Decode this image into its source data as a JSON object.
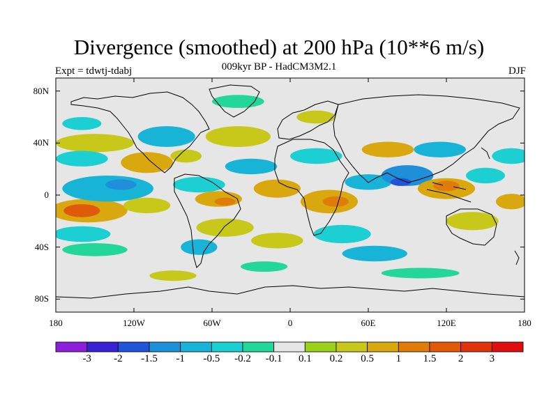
{
  "title": "Divergence (smoothed) at 200 hPa (10**6 m/s)",
  "subtitle": "009kyr BP - HadCM3M2.1",
  "experiment": "Expt = tdwtj-tdabj",
  "season": "DJF",
  "map": {
    "projection": "cylindrical-equidistant",
    "lon_range": [
      -180,
      180
    ],
    "lat_range": [
      -90,
      90
    ],
    "x_ticks": [
      "180",
      "120W",
      "60W",
      "0",
      "60E",
      "120E",
      "180"
    ],
    "x_tick_lons": [
      -180,
      -120,
      -60,
      0,
      60,
      120,
      180
    ],
    "y_ticks": [
      "80N",
      "40N",
      "0",
      "40S",
      "80S"
    ],
    "y_tick_lats": [
      80,
      40,
      0,
      -40,
      -80
    ],
    "background_color": "#e6e6e6"
  },
  "colorbar": {
    "labels": [
      "-3",
      "-2",
      "-1.5",
      "-1",
      "-0.5",
      "-0.2",
      "-0.1",
      "0.1",
      "0.2",
      "0.5",
      "1",
      "1.5",
      "2",
      "3"
    ],
    "colors": [
      "#8c1fd9",
      "#3a1fd6",
      "#1f55d6",
      "#1f8fd9",
      "#18b4d8",
      "#1bcfd2",
      "#23d69a",
      "#e6e6e6",
      "#9bd11a",
      "#c8c81a",
      "#d9a80e",
      "#e07c0a",
      "#e05a0a",
      "#e0330a",
      "#e00f0f"
    ]
  },
  "field_patches": [
    {
      "lon": -155,
      "lat": -12,
      "rx": 30,
      "ry": 9,
      "color": "#d9a80e"
    },
    {
      "lon": -160,
      "lat": -12,
      "rx": 14,
      "ry": 5,
      "color": "#e05a0a"
    },
    {
      "lon": -140,
      "lat": 5,
      "rx": 35,
      "ry": 10,
      "color": "#18b4d8"
    },
    {
      "lon": -130,
      "lat": 8,
      "rx": 12,
      "ry": 4,
      "color": "#1f8fd9"
    },
    {
      "lon": -150,
      "lat": 40,
      "rx": 30,
      "ry": 7,
      "color": "#c8c81a"
    },
    {
      "lon": -160,
      "lat": 28,
      "rx": 20,
      "ry": 6,
      "color": "#1bcfd2"
    },
    {
      "lon": -160,
      "lat": -30,
      "rx": 22,
      "ry": 6,
      "color": "#1bcfd2"
    },
    {
      "lon": -150,
      "lat": -42,
      "rx": 25,
      "ry": 5,
      "color": "#23d69a"
    },
    {
      "lon": -110,
      "lat": 25,
      "rx": 20,
      "ry": 8,
      "color": "#d9a80e"
    },
    {
      "lon": -110,
      "lat": -8,
      "rx": 18,
      "ry": 6,
      "color": "#c8c81a"
    },
    {
      "lon": -95,
      "lat": 45,
      "rx": 22,
      "ry": 8,
      "color": "#18b4d8"
    },
    {
      "lon": -80,
      "lat": 30,
      "rx": 12,
      "ry": 5,
      "color": "#c8c81a"
    },
    {
      "lon": -70,
      "lat": 8,
      "rx": 20,
      "ry": 6,
      "color": "#1bcfd2"
    },
    {
      "lon": -55,
      "lat": -3,
      "rx": 18,
      "ry": 6,
      "color": "#d9a80e"
    },
    {
      "lon": -50,
      "lat": -5,
      "rx": 8,
      "ry": 3,
      "color": "#e07c0a"
    },
    {
      "lon": -50,
      "lat": -25,
      "rx": 22,
      "ry": 7,
      "color": "#c8c81a"
    },
    {
      "lon": -70,
      "lat": -40,
      "rx": 14,
      "ry": 6,
      "color": "#18b4d8"
    },
    {
      "lon": -40,
      "lat": 45,
      "rx": 25,
      "ry": 8,
      "color": "#c8c81a"
    },
    {
      "lon": -30,
      "lat": 22,
      "rx": 20,
      "ry": 6,
      "color": "#18b4d8"
    },
    {
      "lon": -10,
      "lat": 5,
      "rx": 18,
      "ry": 7,
      "color": "#d9a80e"
    },
    {
      "lon": -10,
      "lat": -35,
      "rx": 20,
      "ry": 6,
      "color": "#c8c81a"
    },
    {
      "lon": -20,
      "lat": -55,
      "rx": 18,
      "ry": 4,
      "color": "#23d69a"
    },
    {
      "lon": -40,
      "lat": 72,
      "rx": 20,
      "ry": 5,
      "color": "#23d69a"
    },
    {
      "lon": 20,
      "lat": 60,
      "rx": 15,
      "ry": 5,
      "color": "#c8c81a"
    },
    {
      "lon": 20,
      "lat": 30,
      "rx": 20,
      "ry": 6,
      "color": "#1bcfd2"
    },
    {
      "lon": 30,
      "lat": -5,
      "rx": 22,
      "ry": 9,
      "color": "#d9a80e"
    },
    {
      "lon": 35,
      "lat": -5,
      "rx": 10,
      "ry": 4,
      "color": "#e07c0a"
    },
    {
      "lon": 40,
      "lat": -30,
      "rx": 22,
      "ry": 7,
      "color": "#1bcfd2"
    },
    {
      "lon": 60,
      "lat": 10,
      "rx": 18,
      "ry": 6,
      "color": "#18b4d8"
    },
    {
      "lon": 75,
      "lat": 35,
      "rx": 20,
      "ry": 6,
      "color": "#d9a80e"
    },
    {
      "lon": 65,
      "lat": -45,
      "rx": 25,
      "ry": 6,
      "color": "#18b4d8"
    },
    {
      "lon": 90,
      "lat": 15,
      "rx": 20,
      "ry": 8,
      "color": "#1f8fd9"
    },
    {
      "lon": 85,
      "lat": 10,
      "rx": 8,
      "ry": 3,
      "color": "#1f55d6"
    },
    {
      "lon": 120,
      "lat": 5,
      "rx": 22,
      "ry": 8,
      "color": "#d9a80e"
    },
    {
      "lon": 120,
      "lat": 7,
      "rx": 10,
      "ry": 4,
      "color": "#e07c0a"
    },
    {
      "lon": 115,
      "lat": 35,
      "rx": 20,
      "ry": 6,
      "color": "#18b4d8"
    },
    {
      "lon": 150,
      "lat": 15,
      "rx": 15,
      "ry": 6,
      "color": "#1bcfd2"
    },
    {
      "lon": 140,
      "lat": -20,
      "rx": 20,
      "ry": 7,
      "color": "#c8c81a"
    },
    {
      "lon": 170,
      "lat": -5,
      "rx": 12,
      "ry": 6,
      "color": "#d9a80e"
    },
    {
      "lon": 170,
      "lat": 30,
      "rx": 15,
      "ry": 6,
      "color": "#1bcfd2"
    },
    {
      "lon": 100,
      "lat": -60,
      "rx": 30,
      "ry": 4,
      "color": "#23d69a"
    },
    {
      "lon": -160,
      "lat": 55,
      "rx": 15,
      "ry": 5,
      "color": "#1bcfd2"
    },
    {
      "lon": -90,
      "lat": -62,
      "rx": 18,
      "ry": 4,
      "color": "#c8c81a"
    }
  ]
}
